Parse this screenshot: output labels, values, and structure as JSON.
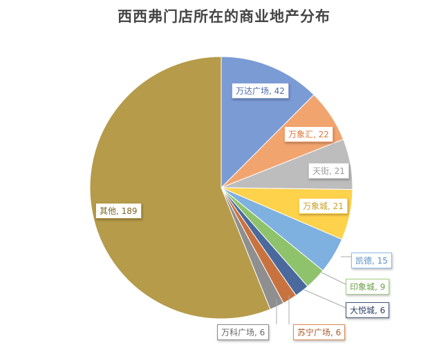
{
  "chart_data": {
    "type": "pie",
    "title": "西西弗门店所在的商业地产分布",
    "start": "12 o'clock, clockwise",
    "slices": [
      {
        "name": "万达广场",
        "value": 42,
        "color": "#7b9bd5"
      },
      {
        "name": "万象汇",
        "value": 22,
        "color": "#f2a46f"
      },
      {
        "name": "天街",
        "value": 21,
        "color": "#bdbdbd"
      },
      {
        "name": "万象城",
        "value": 21,
        "color": "#ffd24c"
      },
      {
        "name": "凯德",
        "value": 15,
        "color": "#7eb0e0"
      },
      {
        "name": "印象城",
        "value": 9,
        "color": "#8fc36b"
      },
      {
        "name": "大悦城",
        "value": 6,
        "color": "#4a6a9e"
      },
      {
        "name": "苏宁广场",
        "value": 6,
        "color": "#c8733f"
      },
      {
        "name": "万科广场",
        "value": 6,
        "color": "#8f8f8f"
      },
      {
        "name": "其他",
        "value": 189,
        "color": "#b59b4a"
      }
    ],
    "labels": [
      "万达广场, 42",
      "万象汇, 22",
      "天街, 21",
      "万象城, 21",
      "凯德, 15",
      "印象城, 9",
      "大悦城, 6",
      "苏宁广场, 6",
      "万科广场, 6",
      "其他, 189"
    ]
  }
}
